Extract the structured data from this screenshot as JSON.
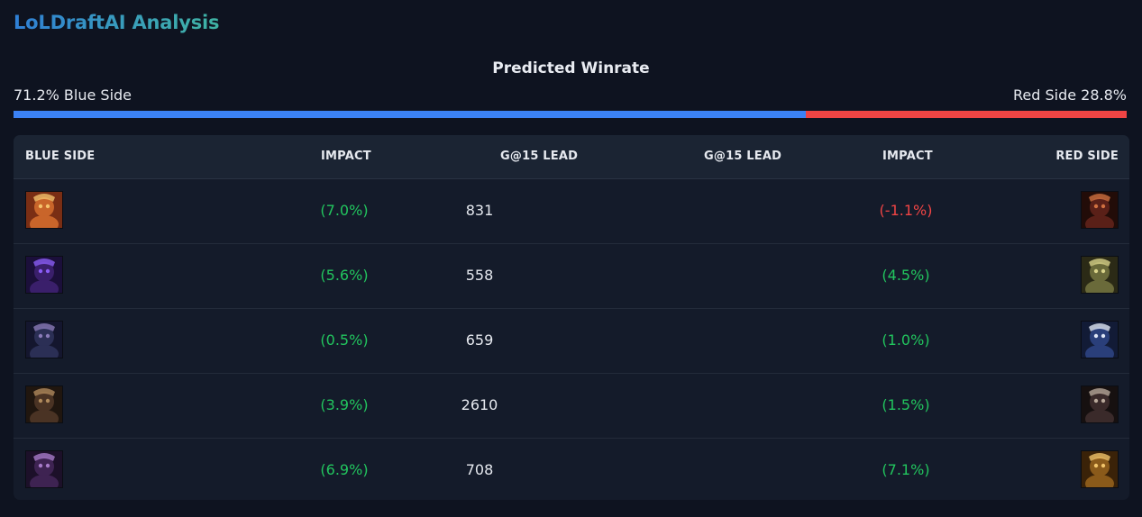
{
  "app": {
    "title": "LoLDraftAI Analysis"
  },
  "winrate": {
    "title": "Predicted Winrate",
    "blue_label": "71.2% Blue Side",
    "red_label": "Red Side 28.8%",
    "blue_fraction": 0.712
  },
  "table": {
    "headers": {
      "blue_side": "BLUE SIDE",
      "blue_impact": "IMPACT",
      "blue_gold": "G@15 LEAD",
      "red_gold": "G@15 LEAD",
      "red_impact": "IMPACT",
      "red_side": "RED SIDE"
    },
    "rows": [
      {
        "blue_impact": "(7.0%)",
        "blue_impact_positive": true,
        "blue_gold": "831",
        "red_gold": "",
        "red_impact": "(-1.1%)",
        "red_impact_positive": false,
        "blue_icon": "champion-portrait-icon",
        "red_icon": "champion-portrait-icon"
      },
      {
        "blue_impact": "(5.6%)",
        "blue_impact_positive": true,
        "blue_gold": "558",
        "red_gold": "",
        "red_impact": "(4.5%)",
        "red_impact_positive": true,
        "blue_icon": "champion-portrait-icon",
        "red_icon": "champion-portrait-icon"
      },
      {
        "blue_impact": "(0.5%)",
        "blue_impact_positive": true,
        "blue_gold": "659",
        "red_gold": "",
        "red_impact": "(1.0%)",
        "red_impact_positive": true,
        "blue_icon": "champion-portrait-icon",
        "red_icon": "champion-portrait-icon"
      },
      {
        "blue_impact": "(3.9%)",
        "blue_impact_positive": true,
        "blue_gold": "2610",
        "red_gold": "",
        "red_impact": "(1.5%)",
        "red_impact_positive": true,
        "blue_icon": "champion-portrait-icon",
        "red_icon": "champion-portrait-icon"
      },
      {
        "blue_impact": "(6.9%)",
        "blue_impact_positive": true,
        "blue_gold": "708",
        "red_gold": "",
        "red_impact": "(7.1%)",
        "red_impact_positive": true,
        "blue_icon": "champion-portrait-icon",
        "red_icon": "champion-portrait-icon"
      }
    ]
  },
  "colors": {
    "blue": "#3b82f6",
    "red": "#ef4444",
    "positive": "#22c55e",
    "negative": "#ef4444"
  }
}
